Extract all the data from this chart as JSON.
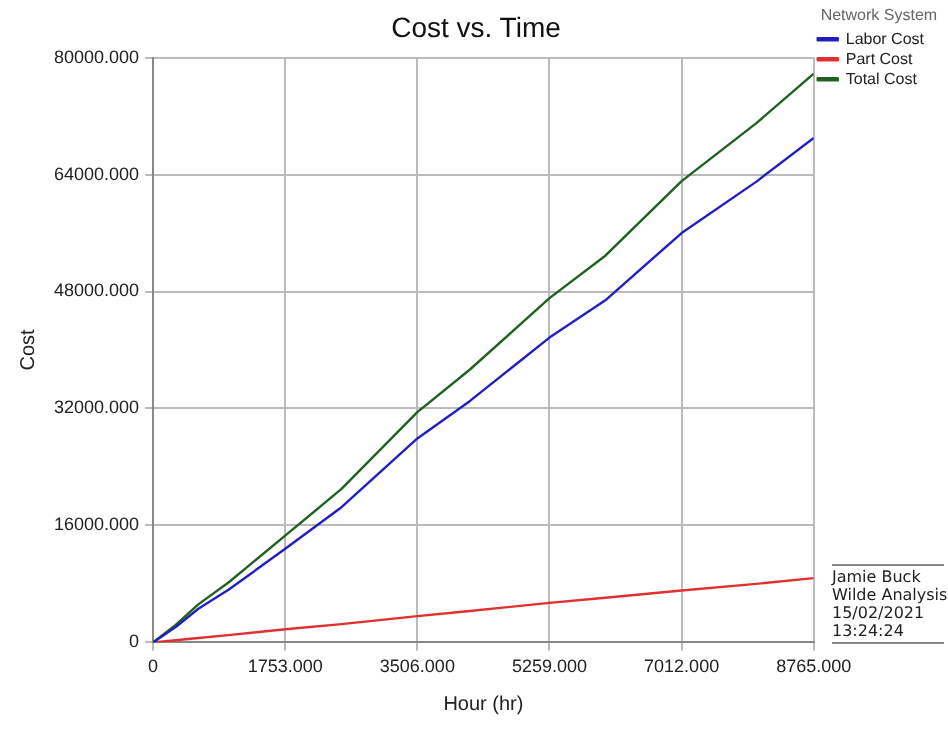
{
  "chart_data": {
    "type": "line",
    "title": "Cost vs. Time",
    "xlabel": "Hour (hr)",
    "ylabel": "Cost",
    "legend_title": "Network System",
    "legend": "top right",
    "grid": true,
    "marker": "none",
    "line_style": "solid",
    "x": [
      0,
      300,
      600,
      1000,
      1753,
      2500,
      3506,
      4200,
      5259,
      6000,
      7012,
      8000,
      8765
    ],
    "xlim": [
      0,
      8765
    ],
    "ylim": [
      0,
      80000
    ],
    "xticks": [
      0,
      {
        "value": 1753,
        "label": "1753.000"
      },
      {
        "value": 3506,
        "label": "3506.000"
      },
      {
        "value": 5259,
        "label": "5259.000"
      },
      {
        "value": 7012,
        "label": "7012.000"
      },
      {
        "value": 8765,
        "label": "8765.000"
      }
    ],
    "yticks": [
      0,
      {
        "value": 16000,
        "label": "16000.000"
      },
      {
        "value": 32000,
        "label": "32000.000"
      },
      {
        "value": 48000,
        "label": "48000.000"
      },
      {
        "value": 64000,
        "label": "64000.000"
      },
      {
        "value": 80000,
        "label": "80000.000"
      }
    ],
    "series": [
      {
        "name": "Labor Cost",
        "color": "#2020c0",
        "values": [
          0,
          2100,
          4600,
          7200,
          12800,
          18500,
          27900,
          33000,
          41700,
          46800,
          56000,
          63000,
          69000
        ]
      },
      {
        "name": "Part Cost",
        "color": "#e03030",
        "values": [
          0,
          300,
          600,
          1000,
          1800,
          2500,
          3600,
          4300,
          5400,
          6100,
          7100,
          8000,
          8800
        ]
      },
      {
        "name": "Total Cost",
        "color": "#206020",
        "values": [
          0,
          2400,
          5200,
          8200,
          14600,
          21000,
          31500,
          37300,
          47100,
          52900,
          63100,
          71000,
          77800
        ]
      }
    ],
    "annotations": [
      "Jamie Buck\nWilde Analysis\n15/02/2021\n13:24:24"
    ]
  }
}
